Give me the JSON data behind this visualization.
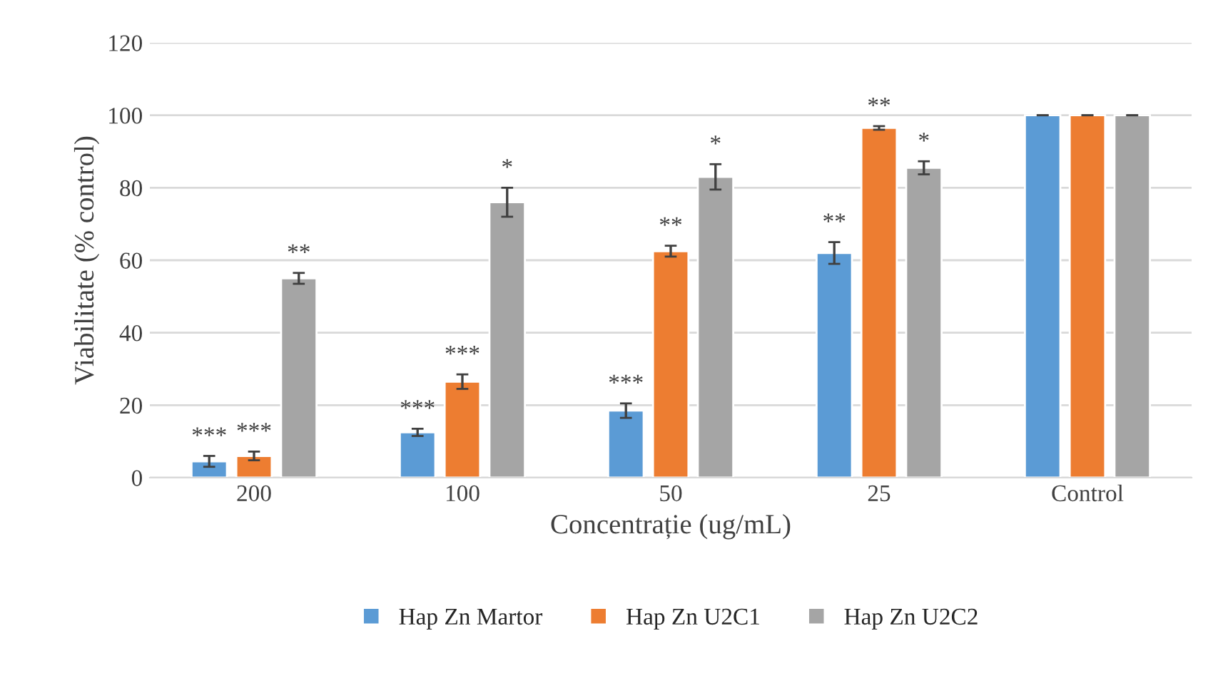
{
  "chart_data": {
    "type": "bar",
    "xlabel": "Concentrație (ug/mL)",
    "ylabel": "Viabilitate (% control)",
    "categories": [
      "200",
      "100",
      "50",
      "25",
      "Control"
    ],
    "ylim": [
      0,
      120
    ],
    "yticks": [
      0,
      20,
      40,
      60,
      80,
      100,
      120
    ],
    "grid": "y",
    "legend": "bottom",
    "series": [
      {
        "name": "Hap Zn Martor",
        "color": "#5b9bd5",
        "values": [
          4.5,
          12.5,
          18.5,
          62,
          100
        ],
        "errors": [
          1.5,
          1,
          2,
          3,
          0
        ],
        "value_labels": [
          "***",
          "***",
          "***",
          "**",
          null
        ]
      },
      {
        "name": "Hap Zn U2C1",
        "color": "#ed7d31",
        "values": [
          6,
          26.5,
          62.5,
          96.5,
          100
        ],
        "errors": [
          1.2,
          2,
          1.5,
          0.5,
          0
        ],
        "value_labels": [
          "***",
          "***",
          "**",
          "**",
          null
        ]
      },
      {
        "name": "Hap Zn U2C2",
        "color": "#a5a5a5",
        "values": [
          55,
          76,
          83,
          85.5,
          100
        ],
        "errors": [
          1.5,
          4,
          3.5,
          1.8,
          0
        ],
        "value_labels": [
          "**",
          "*",
          "*",
          "*",
          null
        ]
      }
    ]
  }
}
